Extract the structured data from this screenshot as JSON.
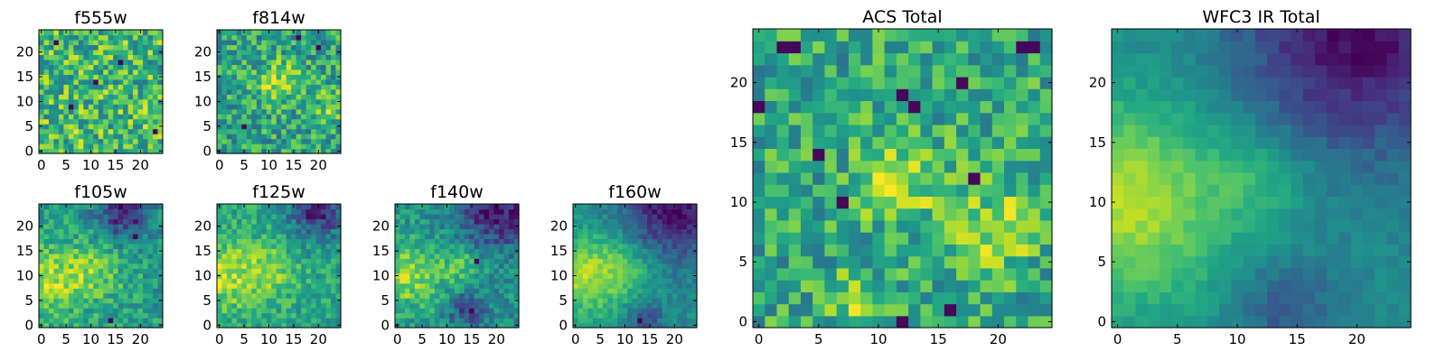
{
  "figure": {
    "background": "#ffffff"
  },
  "chart_data": [
    {
      "id": "f555w",
      "type": "heatmap",
      "title": "f555w",
      "grid_size": 25,
      "xlim": [
        0,
        24
      ],
      "ylim": [
        0,
        24
      ],
      "xticks": [
        0,
        5,
        10,
        15,
        20
      ],
      "yticks": [
        0,
        5,
        10,
        15,
        20
      ],
      "colormap": "viridis",
      "render_seed": 11,
      "field": {
        "base": 0.68,
        "noise": 0.28,
        "blobs": [],
        "dark_pixels": [
          [
            3,
            22
          ],
          [
            16,
            18
          ],
          [
            6,
            9
          ],
          [
            23,
            4
          ],
          [
            11,
            14
          ]
        ]
      }
    },
    {
      "id": "f814w",
      "type": "heatmap",
      "title": "f814w",
      "grid_size": 25,
      "xlim": [
        0,
        24
      ],
      "ylim": [
        0,
        24
      ],
      "xticks": [
        0,
        5,
        10,
        15,
        20
      ],
      "yticks": [
        0,
        5,
        10,
        15,
        20
      ],
      "colormap": "viridis",
      "render_seed": 23,
      "field": {
        "base": 0.58,
        "noise": 0.24,
        "blobs": [
          [
            12,
            14,
            3,
            0.3
          ],
          [
            23,
            9,
            2.5,
            0.25
          ]
        ],
        "dark_pixels": [
          [
            20,
            21
          ],
          [
            5,
            5
          ],
          [
            16,
            23
          ]
        ]
      }
    },
    {
      "id": "f105w",
      "type": "heatmap",
      "title": "f105w",
      "grid_size": 25,
      "xlim": [
        0,
        24
      ],
      "ylim": [
        0,
        24
      ],
      "xticks": [
        0,
        5,
        10,
        15,
        20
      ],
      "yticks": [
        0,
        5,
        10,
        15,
        20
      ],
      "colormap": "viridis",
      "render_seed": 37,
      "field": {
        "base": 0.56,
        "noise": 0.16,
        "blobs": [
          [
            2,
            9,
            5,
            0.3
          ],
          [
            11,
            11,
            4,
            0.2
          ],
          [
            17,
            23,
            4,
            -0.45
          ]
        ],
        "dark_pixels": [
          [
            14,
            1
          ],
          [
            19,
            18
          ]
        ]
      }
    },
    {
      "id": "f125w",
      "type": "heatmap",
      "title": "f125w",
      "grid_size": 25,
      "xlim": [
        0,
        24
      ],
      "ylim": [
        0,
        24
      ],
      "xticks": [
        0,
        5,
        10,
        15,
        20
      ],
      "yticks": [
        0,
        5,
        10,
        15,
        20
      ],
      "colormap": "viridis",
      "render_seed": 41,
      "field": {
        "base": 0.58,
        "noise": 0.15,
        "blobs": [
          [
            1,
            10,
            5,
            0.3
          ],
          [
            11,
            11,
            4,
            0.2
          ],
          [
            20,
            23,
            4,
            -0.45
          ]
        ],
        "dark_pixels": [
          [
            18,
            22
          ]
        ]
      }
    },
    {
      "id": "f140w",
      "type": "heatmap",
      "title": "f140w",
      "grid_size": 25,
      "xlim": [
        0,
        24
      ],
      "ylim": [
        0,
        24
      ],
      "xticks": [
        0,
        5,
        10,
        15,
        20
      ],
      "yticks": [
        0,
        5,
        10,
        15,
        20
      ],
      "colormap": "viridis",
      "render_seed": 53,
      "field": {
        "base": 0.5,
        "noise": 0.15,
        "blobs": [
          [
            2,
            10,
            5,
            0.35
          ],
          [
            13,
            12,
            3,
            0.2
          ],
          [
            20,
            23,
            5,
            -0.45
          ],
          [
            14,
            3,
            2.5,
            -0.3
          ]
        ],
        "dark_pixels": [
          [
            15,
            3
          ],
          [
            16,
            13
          ]
        ]
      }
    },
    {
      "id": "f160w",
      "type": "heatmap",
      "title": "f160w",
      "grid_size": 25,
      "xlim": [
        0,
        24
      ],
      "ylim": [
        0,
        24
      ],
      "xticks": [
        0,
        5,
        10,
        15,
        20
      ],
      "yticks": [
        0,
        5,
        10,
        15,
        20
      ],
      "colormap": "viridis",
      "render_seed": 67,
      "field": {
        "base": 0.48,
        "noise": 0.09,
        "blobs": [
          [
            2,
            10,
            6,
            0.38
          ],
          [
            11,
            12,
            4,
            0.15
          ],
          [
            20,
            24,
            7,
            -0.45
          ],
          [
            14,
            1,
            2.5,
            -0.25
          ]
        ],
        "dark_pixels": [
          [
            22,
            22
          ],
          [
            13,
            1
          ]
        ]
      }
    },
    {
      "id": "acs_total",
      "type": "heatmap",
      "title": "ACS Total",
      "grid_size": 25,
      "xlim": [
        0,
        24
      ],
      "ylim": [
        0,
        24
      ],
      "xticks": [
        0,
        5,
        10,
        15,
        20
      ],
      "yticks": [
        0,
        5,
        10,
        15,
        20
      ],
      "colormap": "viridis",
      "render_seed": 79,
      "field": {
        "base": 0.6,
        "noise": 0.22,
        "blobs": [
          [
            12,
            12,
            2.5,
            0.3
          ],
          [
            20,
            8,
            2.5,
            0.25
          ],
          [
            8,
            2,
            1.5,
            0.3
          ]
        ],
        "dark_pixels": [
          [
            2,
            23
          ],
          [
            3,
            23
          ],
          [
            12,
            19
          ],
          [
            13,
            18
          ],
          [
            17,
            20
          ],
          [
            22,
            23
          ],
          [
            23,
            23
          ],
          [
            7,
            10
          ],
          [
            0,
            18
          ],
          [
            16,
            1
          ],
          [
            12,
            0
          ],
          [
            5,
            14
          ],
          [
            18,
            12
          ]
        ]
      }
    },
    {
      "id": "wfc3_ir_total",
      "type": "heatmap",
      "title": "WFC3 IR Total",
      "grid_size": 25,
      "xlim": [
        0,
        24
      ],
      "ylim": [
        0,
        24
      ],
      "xticks": [
        0,
        5,
        10,
        15,
        20
      ],
      "yticks": [
        0,
        5,
        10,
        15,
        20
      ],
      "colormap": "viridis",
      "render_seed": 97,
      "field": {
        "base": 0.48,
        "noise": 0.05,
        "blobs": [
          [
            1,
            10,
            6,
            0.4
          ],
          [
            12,
            12,
            3,
            0.15
          ],
          [
            20,
            24,
            7,
            -0.45
          ],
          [
            14,
            1,
            3,
            -0.2
          ]
        ],
        "dark_pixels": [
          [
            22,
            22
          ],
          [
            23,
            23
          ],
          [
            21,
            23
          ]
        ]
      }
    }
  ]
}
